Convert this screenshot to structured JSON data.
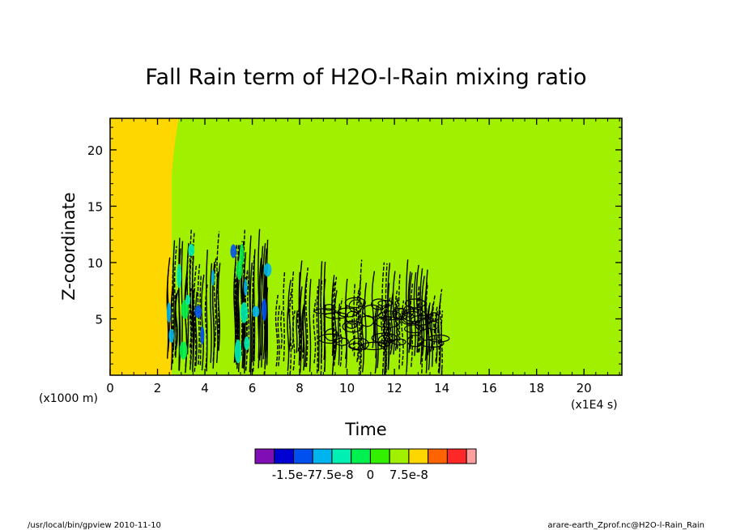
{
  "chart_data": {
    "type": "heatmap",
    "title": "Fall Rain term of H2O-l-Rain mixing ratio",
    "xlabel": "Time",
    "ylabel": "Z-coordinate",
    "x_unit": "(x1E4 s)",
    "y_unit": "(x1000 m)",
    "xlim": [
      0,
      21.6
    ],
    "ylim": [
      0,
      22.8
    ],
    "x_ticks": [
      0,
      2,
      4,
      6,
      8,
      10,
      12,
      14,
      16,
      18,
      20
    ],
    "y_ticks": [
      5,
      10,
      15,
      20
    ],
    "background_level": "0",
    "regions": [
      {
        "color": "#ffd700",
        "x_range": [
          0,
          2.6
        ],
        "y_range": [
          0,
          22.8
        ],
        "note": "left band, slightly positive"
      },
      {
        "color": "#a0f000",
        "x_range": [
          2.6,
          21.6
        ],
        "y_range": [
          0,
          22.8
        ],
        "note": "near-zero value region"
      }
    ],
    "contour_zones": [
      {
        "x_range": [
          2.4,
          4.6
        ],
        "y_range": [
          0,
          13.2
        ],
        "density": "medium"
      },
      {
        "x_range": [
          5.2,
          6.7
        ],
        "y_range": [
          0,
          13.2
        ],
        "density": "medium"
      },
      {
        "x_range": [
          7.0,
          14.0
        ],
        "y_range": [
          0,
          10.3
        ],
        "density": "high"
      }
    ],
    "colorbar": {
      "colors": [
        "#7f0fb4",
        "#0000d2",
        "#0050f0",
        "#00b4f0",
        "#00f0b4",
        "#00f050",
        "#32f000",
        "#a0f000",
        "#ffd700",
        "#ff6400",
        "#ff2828",
        "#ffa0a0"
      ],
      "tick_labels": [
        "-1.5e-7",
        "-7.5e-8",
        "0",
        "7.5e-8"
      ],
      "tick_after_box": [
        2,
        4,
        6,
        8
      ]
    }
  },
  "footer": {
    "left": "/usr/local/bin/gpview   2010-11-10",
    "right": "arare-earth_Zprof.nc@H2O-l-Rain_Rain"
  }
}
